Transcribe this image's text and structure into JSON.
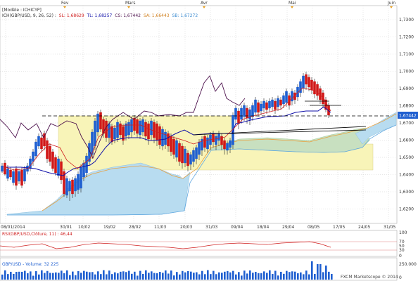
{
  "months": [
    "Fev",
    "Mars",
    "Avr",
    "Mai",
    "Juin"
  ],
  "header": {
    "mode_label": "[Modèle : ICHICYP]",
    "indicator_label": "ICH(GBP/USD, 9, 26, 52) :",
    "sl_text": "SL: 1,68629",
    "tl_text": "TL: 1,68257",
    "cs_text": "CS: 1,67442",
    "sa_text": "SA: 1,66443",
    "sb_text": "SB: 1,67272"
  },
  "price_axis": {
    "ticks": [
      "1,7300",
      "1,7200",
      "1,7100",
      "1,7000",
      "1,6900",
      "1,6800",
      "1,6700",
      "1,6600",
      "1,6500",
      "1,6400",
      "1,6300",
      "1,6200"
    ],
    "current_price_label": "1,67442"
  },
  "date_axis": {
    "ticks": [
      "08/01/2014",
      "30/01",
      "10/02",
      "19/02",
      "28/02",
      "11/03",
      "20/03",
      "31/03",
      "09/04",
      "18/04",
      "29/04",
      "08/05",
      "17/05",
      "24/05",
      "31/05"
    ]
  },
  "rsi_panel": {
    "label": "RSI(GBP/USD,Clôture, 11) : 46,44",
    "ticks": [
      "100",
      "70",
      "50",
      "30",
      "0"
    ]
  },
  "volume_panel": {
    "label": "GBP/USD - Volume: 32 225",
    "ticks": [
      "250.000",
      "0"
    ],
    "watermark": "FXCM Marketscope © 2014"
  },
  "colors": {
    "bull": "#1f5fd0",
    "bear": "#d01818",
    "kijun": "#1010a8",
    "tenkan": "#d02020",
    "chikou": "#4b0f4b",
    "cloud_bull": "#c8e0c0",
    "cloud_bear": "#b8dcf0",
    "yellow_zone": "#f8f4b8",
    "volume": "#1f5fd0"
  }
}
